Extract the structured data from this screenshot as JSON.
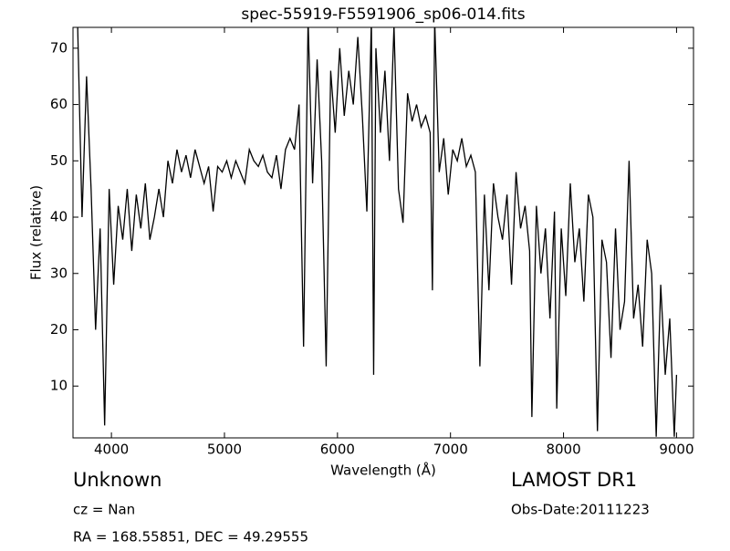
{
  "chart_data": {
    "type": "line",
    "title": "spec-55919-F5591906_sp06-014.fits",
    "xlabel": "Wavelength (Å)",
    "ylabel": "Flux (relative)",
    "color": "#000000",
    "xlim": [
      3660,
      9150
    ],
    "ylim": [
      0.8,
      73.7
    ],
    "xticks": [
      4000,
      5000,
      6000,
      7000,
      8000,
      9000
    ],
    "yticks": [
      10,
      20,
      30,
      40,
      50,
      60,
      70
    ],
    "x": [
      3700,
      3740,
      3780,
      3820,
      3860,
      3900,
      3940,
      3980,
      4020,
      4060,
      4100,
      4140,
      4180,
      4220,
      4260,
      4300,
      4340,
      4380,
      4420,
      4460,
      4500,
      4540,
      4580,
      4620,
      4660,
      4700,
      4740,
      4780,
      4820,
      4860,
      4900,
      4940,
      4980,
      5020,
      5060,
      5100,
      5140,
      5180,
      5220,
      5260,
      5300,
      5340,
      5380,
      5420,
      5460,
      5500,
      5540,
      5580,
      5620,
      5660,
      5700,
      5740,
      5780,
      5820,
      5860,
      5900,
      5940,
      5980,
      6020,
      6060,
      6100,
      6140,
      6180,
      6220,
      6260,
      6300,
      6320,
      6340,
      6380,
      6420,
      6460,
      6500,
      6540,
      6580,
      6620,
      6660,
      6700,
      6740,
      6780,
      6820,
      6840,
      6860,
      6900,
      6940,
      6980,
      7020,
      7060,
      7100,
      7140,
      7180,
      7220,
      7260,
      7300,
      7340,
      7380,
      7420,
      7460,
      7500,
      7540,
      7580,
      7620,
      7660,
      7700,
      7720,
      7760,
      7800,
      7840,
      7880,
      7920,
      7940,
      7980,
      8020,
      8060,
      8100,
      8140,
      8180,
      8220,
      8260,
      8300,
      8340,
      8380,
      8420,
      8460,
      8500,
      8540,
      8580,
      8620,
      8660,
      8700,
      8740,
      8780,
      8820,
      8860,
      8900,
      8940,
      8980,
      9000
    ],
    "values": [
      75,
      40,
      65,
      45,
      20,
      38,
      3,
      45,
      28,
      42,
      36,
      45,
      34,
      44,
      38,
      46,
      36,
      40,
      45,
      40,
      50,
      46,
      52,
      48,
      51,
      47,
      52,
      49,
      46,
      49,
      41,
      49,
      48,
      50,
      47,
      50,
      48,
      46,
      52,
      50,
      49,
      51,
      48,
      47,
      51,
      45,
      52,
      54,
      52,
      60,
      17,
      75,
      46,
      68,
      50,
      13.5,
      66,
      55,
      70,
      58,
      66,
      60,
      72,
      58,
      41,
      75,
      12,
      70,
      55,
      66,
      50,
      74,
      45,
      39,
      62,
      57,
      60,
      56,
      58,
      55,
      27,
      75,
      48,
      54,
      44,
      52,
      50,
      54,
      49,
      51,
      48,
      13.5,
      44,
      27,
      46,
      40,
      36,
      44,
      28,
      48,
      38,
      42,
      34,
      4.5,
      42,
      30,
      38,
      22,
      41,
      6,
      38,
      26,
      46,
      32,
      38,
      25,
      44,
      40,
      2,
      36,
      32,
      15,
      38,
      20,
      25,
      50,
      22,
      28,
      17,
      36,
      30,
      1,
      28,
      12,
      22,
      1,
      12
    ],
    "annotations": [
      "Unknown",
      "cz = Nan",
      "RA = 168.55851, DEC = 49.29555",
      "LAMOST DR1",
      "Obs-Date:20111223"
    ]
  }
}
